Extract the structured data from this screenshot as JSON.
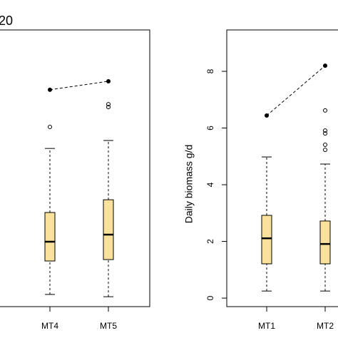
{
  "chart_data": [
    {
      "type": "box",
      "title": "20",
      "categories": [
        "MT4",
        "MT5"
      ],
      "box_color": "#fbe29c",
      "ylim": [
        -0.3,
        9.46
      ],
      "boxes": [
        {
          "whislo": 0.13,
          "q1": 1.31,
          "med": 1.99,
          "q3": 3.02,
          "whishi": 5.28,
          "fliers": [
            6.04
          ]
        },
        {
          "whislo": 0.05,
          "q1": 1.36,
          "med": 2.24,
          "q3": 3.47,
          "whishi": 5.56,
          "fliers": [
            6.74,
            6.84
          ]
        }
      ],
      "dots": [
        7.35,
        7.65
      ]
    },
    {
      "type": "box",
      "ylabel": "Daily biomass g/d",
      "categories": [
        "MT1",
        "MT2"
      ],
      "box_color": "#fbe29c",
      "ylim": [
        -0.3,
        9.46
      ],
      "yticks": [
        0,
        2,
        4,
        6,
        8
      ],
      "boxes": [
        {
          "whislo": 0.25,
          "q1": 1.21,
          "med": 2.11,
          "q3": 2.92,
          "whishi": 4.98,
          "fliers": []
        },
        {
          "whislo": 0.25,
          "q1": 1.21,
          "med": 1.91,
          "q3": 2.72,
          "whishi": 4.73,
          "fliers": [
            5.23,
            5.41,
            5.81,
            5.91,
            6.62
          ]
        }
      ],
      "dots": [
        6.44,
        8.2
      ]
    }
  ]
}
